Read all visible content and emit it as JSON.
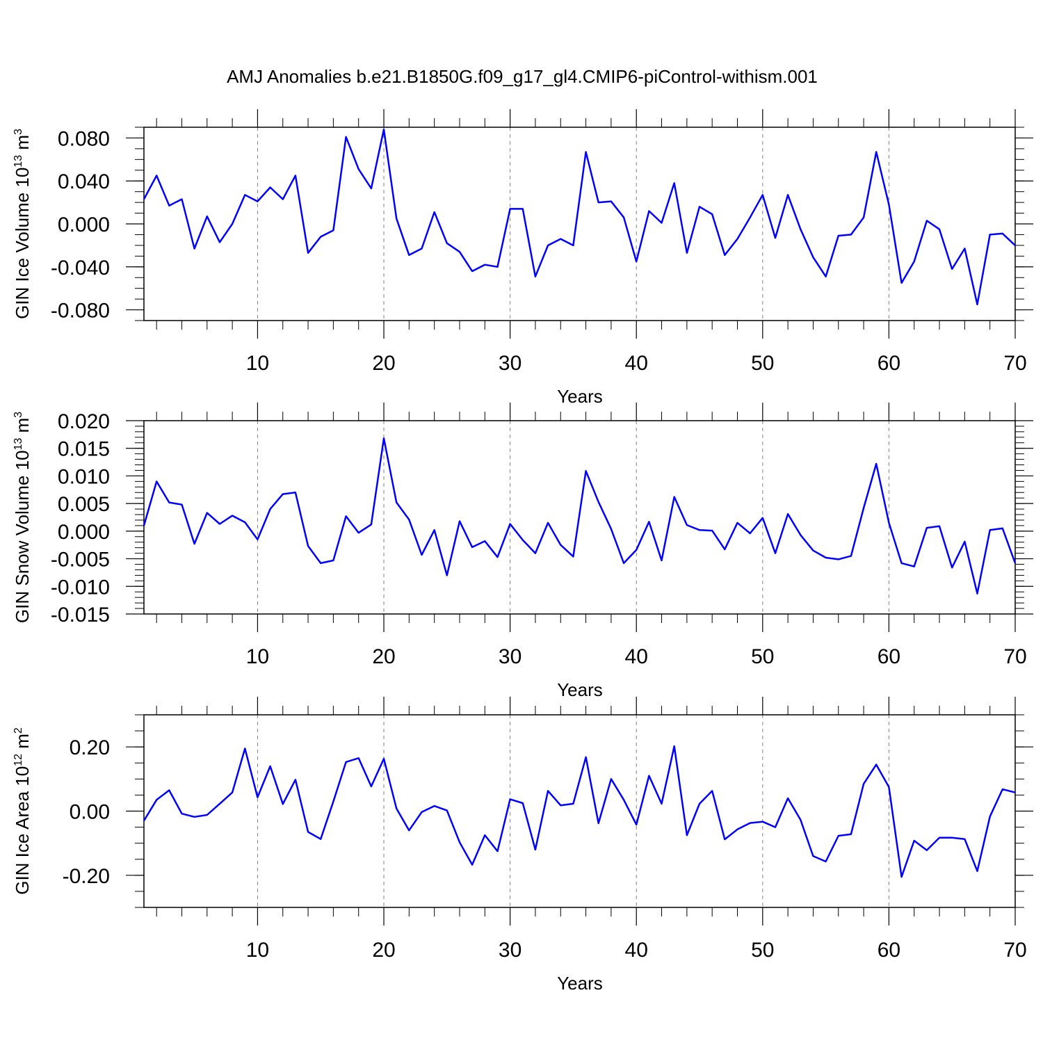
{
  "figure": {
    "title": "AMJ Anomalies b.e21.B1850G.f09_g17_gl4.CMIP6-piControl-withism.001",
    "line_color": "#0000ff",
    "grid_color": "#808080",
    "axis_color": "#000000"
  },
  "chart_data": [
    {
      "type": "line",
      "name": "ice-volume",
      "title": "AMJ Anomalies b.e21.B1850G.f09_g17_gl4.CMIP6-piControl-withism.001",
      "xlabel": "Years",
      "ylabel": {
        "main": "GIN Ice Volume 10",
        "sup": "13",
        "mid": " m",
        "sup2": "3"
      },
      "xlim": [
        1,
        70
      ],
      "ylim": [
        -0.09,
        0.09
      ],
      "xticks": [
        10,
        20,
        30,
        40,
        50,
        60,
        70
      ],
      "xtick_labels": [
        "10",
        "20",
        "30",
        "40",
        "50",
        "60",
        "70"
      ],
      "yticks": [
        0.08,
        0.04,
        0.0,
        -0.04,
        -0.08
      ],
      "ytick_labels": [
        "0.080",
        "0.040",
        "0.000",
        "-0.040",
        "-0.080"
      ],
      "yminor_step": 0.01,
      "grid": "vertical dashed at major x ticks",
      "x": [
        1,
        2,
        3,
        4,
        5,
        6,
        7,
        8,
        9,
        10,
        11,
        12,
        13,
        14,
        15,
        16,
        17,
        18,
        19,
        20,
        21,
        22,
        23,
        24,
        25,
        26,
        27,
        28,
        29,
        30,
        31,
        32,
        33,
        34,
        35,
        36,
        37,
        38,
        39,
        40,
        41,
        42,
        43,
        44,
        45,
        46,
        47,
        48,
        49,
        50,
        51,
        52,
        53,
        54,
        55,
        56,
        57,
        58,
        59,
        60,
        61,
        62,
        63,
        64,
        65,
        66,
        67,
        68,
        69,
        70
      ],
      "values": [
        0.023,
        0.045,
        0.017,
        0.023,
        -0.023,
        0.007,
        -0.017,
        0.0,
        0.027,
        0.021,
        0.034,
        0.023,
        0.045,
        -0.027,
        -0.012,
        -0.006,
        0.081,
        0.051,
        0.033,
        0.088,
        0.005,
        -0.029,
        -0.023,
        0.011,
        -0.018,
        -0.026,
        -0.044,
        -0.038,
        -0.04,
        0.014,
        0.014,
        -0.049,
        -0.02,
        -0.014,
        -0.02,
        0.067,
        0.02,
        0.021,
        0.006,
        -0.035,
        0.012,
        0.001,
        0.038,
        -0.027,
        0.016,
        0.009,
        -0.029,
        -0.014,
        0.006,
        0.027,
        -0.013,
        0.027,
        -0.005,
        -0.031,
        -0.049,
        -0.011,
        -0.01,
        0.006,
        0.067,
        0.018,
        -0.055,
        -0.035,
        0.003,
        -0.005,
        -0.042,
        -0.023,
        -0.075,
        -0.01,
        -0.009,
        -0.02
      ]
    },
    {
      "type": "line",
      "name": "snow-volume",
      "xlabel": "Years",
      "ylabel": {
        "main": "GIN Snow Volume 10",
        "sup": "13",
        "mid": " m",
        "sup2": "3"
      },
      "xlim": [
        1,
        70
      ],
      "ylim": [
        -0.015,
        0.02
      ],
      "xticks": [
        10,
        20,
        30,
        40,
        50,
        60,
        70
      ],
      "xtick_labels": [
        "10",
        "20",
        "30",
        "40",
        "50",
        "60",
        "70"
      ],
      "yticks": [
        0.02,
        0.015,
        0.01,
        0.005,
        0.0,
        -0.005,
        -0.01,
        -0.015
      ],
      "ytick_labels": [
        "0.020",
        "0.015",
        "0.010",
        "0.005",
        "0.000",
        "-0.005",
        "-0.010",
        "-0.015"
      ],
      "yminor_step": 0.001,
      "grid": "vertical dashed at major x ticks",
      "x": [
        1,
        2,
        3,
        4,
        5,
        6,
        7,
        8,
        9,
        10,
        11,
        12,
        13,
        14,
        15,
        16,
        17,
        18,
        19,
        20,
        21,
        22,
        23,
        24,
        25,
        26,
        27,
        28,
        29,
        30,
        31,
        32,
        33,
        34,
        35,
        36,
        37,
        38,
        39,
        40,
        41,
        42,
        43,
        44,
        45,
        46,
        47,
        48,
        49,
        50,
        51,
        52,
        53,
        54,
        55,
        56,
        57,
        58,
        59,
        60,
        61,
        62,
        63,
        64,
        65,
        66,
        67,
        68,
        69,
        70
      ],
      "values": [
        0.001,
        0.009,
        0.0052,
        0.0048,
        -0.0023,
        0.0033,
        0.0013,
        0.0028,
        0.0016,
        -0.0015,
        0.004,
        0.0067,
        0.007,
        -0.0027,
        -0.0058,
        -0.0053,
        0.0027,
        -0.0003,
        0.0012,
        0.0168,
        0.0052,
        0.0021,
        -0.0043,
        0.0002,
        -0.008,
        0.0018,
        -0.0029,
        -0.0018,
        -0.0047,
        0.0013,
        -0.0016,
        -0.004,
        0.0015,
        -0.0025,
        -0.0046,
        0.0109,
        0.0053,
        0.0004,
        -0.0058,
        -0.0034,
        0.0017,
        -0.0053,
        0.0062,
        0.0011,
        0.0002,
        0.0001,
        -0.0033,
        0.0015,
        -0.0004,
        0.0024,
        -0.004,
        0.0031,
        -0.0007,
        -0.0035,
        -0.0048,
        -0.0051,
        -0.0045,
        0.0042,
        0.0122,
        0.0015,
        -0.0058,
        -0.0064,
        0.0006,
        0.0009,
        -0.0066,
        -0.0019,
        -0.0113,
        0.0002,
        0.0005,
        -0.0058
      ]
    },
    {
      "type": "line",
      "name": "ice-area",
      "xlabel": "Years",
      "ylabel": {
        "main": "GIN Ice Area 10",
        "sup": "12",
        "mid": " m",
        "sup2": "2"
      },
      "xlim": [
        1,
        70
      ],
      "ylim": [
        -0.3,
        0.3
      ],
      "xticks": [
        10,
        20,
        30,
        40,
        50,
        60,
        70
      ],
      "xtick_labels": [
        "10",
        "20",
        "30",
        "40",
        "50",
        "60",
        "70"
      ],
      "yticks": [
        0.2,
        0.0,
        -0.2
      ],
      "ytick_labels": [
        "0.20",
        "0.00",
        "-0.20"
      ],
      "yminor_step": 0.05,
      "grid": "vertical dashed at major x ticks",
      "x": [
        1,
        2,
        3,
        4,
        5,
        6,
        7,
        8,
        9,
        10,
        11,
        12,
        13,
        14,
        15,
        16,
        17,
        18,
        19,
        20,
        21,
        22,
        23,
        24,
        25,
        26,
        27,
        28,
        29,
        30,
        31,
        32,
        33,
        34,
        35,
        36,
        37,
        38,
        39,
        40,
        41,
        42,
        43,
        44,
        45,
        46,
        47,
        48,
        49,
        50,
        51,
        52,
        53,
        54,
        55,
        56,
        57,
        58,
        59,
        60,
        61,
        62,
        63,
        64,
        65,
        66,
        67,
        68,
        69,
        70
      ],
      "values": [
        -0.03,
        0.035,
        0.065,
        -0.008,
        -0.018,
        -0.012,
        0.023,
        0.058,
        0.195,
        0.043,
        0.14,
        0.022,
        0.098,
        -0.065,
        -0.087,
        0.03,
        0.153,
        0.165,
        0.077,
        0.163,
        0.008,
        -0.06,
        -0.003,
        0.016,
        0.002,
        -0.097,
        -0.167,
        -0.075,
        -0.125,
        0.037,
        0.025,
        -0.12,
        0.063,
        0.018,
        0.023,
        0.168,
        -0.038,
        0.1,
        0.035,
        -0.042,
        0.11,
        0.023,
        0.202,
        -0.075,
        0.023,
        0.063,
        -0.088,
        -0.057,
        -0.037,
        -0.033,
        -0.05,
        0.04,
        -0.027,
        -0.14,
        -0.157,
        -0.077,
        -0.072,
        0.085,
        0.145,
        0.075,
        -0.205,
        -0.092,
        -0.122,
        -0.083,
        -0.083,
        -0.087,
        -0.187,
        -0.017,
        0.068,
        0.058
      ]
    }
  ]
}
